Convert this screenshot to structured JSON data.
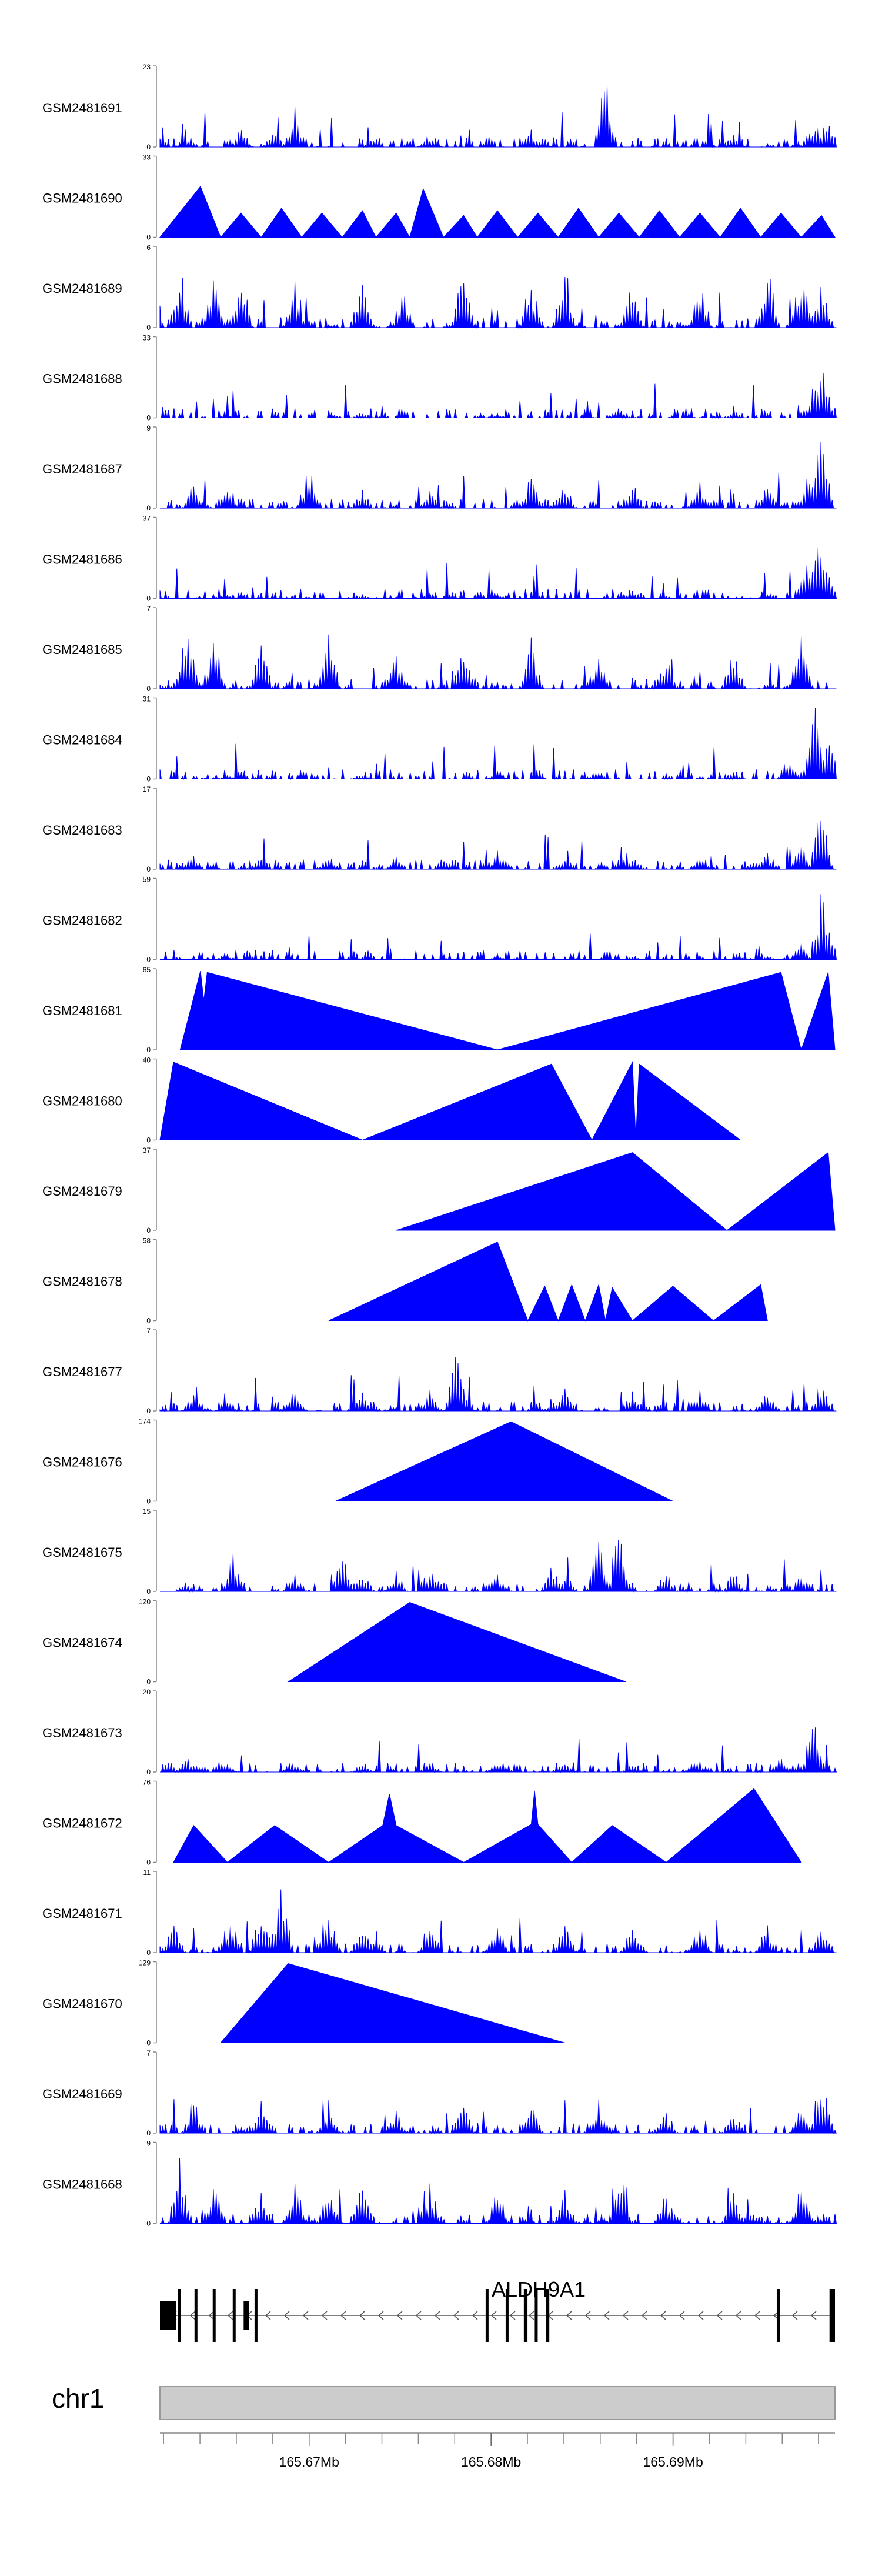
{
  "chart_data": {
    "type": "area",
    "title": "",
    "x_unit": "Mb",
    "xlim": [
      165.6618,
      165.6989
    ],
    "x_ticks": [
      {
        "value": 165.67,
        "label": "165.67Mb"
      },
      {
        "value": 165.68,
        "label": "165.68Mb"
      },
      {
        "value": 165.69,
        "label": "165.69Mb"
      }
    ],
    "track_color": "#0000ff",
    "tracks": [
      {
        "name": "GSM2481691",
        "ymax": "23",
        "ymin": "0",
        "style": "dense",
        "peaks": [
          [
            0.04,
            4
          ],
          [
            0.12,
            6
          ],
          [
            0.17,
            5
          ],
          [
            0.2,
            12
          ],
          [
            0.4,
            4
          ],
          [
            0.55,
            5
          ],
          [
            0.66,
            22
          ],
          [
            0.85,
            4
          ],
          [
            0.97,
            9
          ],
          [
            0.99,
            7
          ]
        ]
      },
      {
        "name": "GSM2481690",
        "ymax": "33",
        "ymin": "0",
        "style": "triangles",
        "peaks": [
          [
            0.0,
            0
          ],
          [
            0.06,
            21
          ],
          [
            0.09,
            0
          ],
          [
            0.12,
            10
          ],
          [
            0.15,
            0
          ],
          [
            0.18,
            12
          ],
          [
            0.21,
            0
          ],
          [
            0.24,
            10
          ],
          [
            0.27,
            0
          ],
          [
            0.3,
            11
          ],
          [
            0.32,
            0
          ],
          [
            0.35,
            10
          ],
          [
            0.37,
            0
          ],
          [
            0.39,
            20
          ],
          [
            0.42,
            0
          ],
          [
            0.45,
            9
          ],
          [
            0.47,
            0
          ],
          [
            0.5,
            11
          ],
          [
            0.53,
            0
          ],
          [
            0.56,
            10
          ],
          [
            0.59,
            0
          ],
          [
            0.62,
            12
          ],
          [
            0.65,
            0
          ],
          [
            0.68,
            10
          ],
          [
            0.71,
            0
          ],
          [
            0.74,
            11
          ],
          [
            0.77,
            0
          ],
          [
            0.8,
            10
          ],
          [
            0.83,
            0
          ],
          [
            0.86,
            12
          ],
          [
            0.89,
            0
          ],
          [
            0.92,
            10
          ],
          [
            0.95,
            0
          ],
          [
            0.98,
            9
          ],
          [
            1.0,
            0
          ]
        ]
      },
      {
        "name": "GSM2481689",
        "ymax": "6",
        "ymin": "0",
        "style": "dense",
        "peaks": [
          [
            0.03,
            5
          ],
          [
            0.08,
            4
          ],
          [
            0.12,
            5
          ],
          [
            0.2,
            4
          ],
          [
            0.3,
            4
          ],
          [
            0.36,
            3
          ],
          [
            0.45,
            6
          ],
          [
            0.55,
            4
          ],
          [
            0.6,
            5
          ],
          [
            0.7,
            4
          ],
          [
            0.8,
            4
          ],
          [
            0.9,
            5
          ],
          [
            0.95,
            5
          ],
          [
            0.98,
            4
          ]
        ]
      },
      {
        "name": "GSM2481688",
        "ymax": "33",
        "ymin": "0",
        "style": "dense",
        "peaks": [
          [
            0.1,
            2
          ],
          [
            0.3,
            2
          ],
          [
            0.5,
            2
          ],
          [
            0.68,
            5
          ],
          [
            0.85,
            2
          ],
          [
            0.96,
            6
          ],
          [
            0.98,
            31
          ],
          [
            0.99,
            10
          ]
        ]
      },
      {
        "name": "GSM2481687",
        "ymax": "9",
        "ymin": "0",
        "style": "dense",
        "peaks": [
          [
            0.05,
            3
          ],
          [
            0.1,
            3
          ],
          [
            0.22,
            5
          ],
          [
            0.3,
            2
          ],
          [
            0.4,
            2
          ],
          [
            0.55,
            4
          ],
          [
            0.6,
            3
          ],
          [
            0.7,
            3
          ],
          [
            0.8,
            3
          ],
          [
            0.9,
            3
          ],
          [
            0.96,
            4
          ],
          [
            0.98,
            9
          ]
        ]
      },
      {
        "name": "GSM2481686",
        "ymax": "37",
        "ymin": "0",
        "style": "dense",
        "peaks": [
          [
            0.1,
            2
          ],
          [
            0.3,
            2
          ],
          [
            0.5,
            2
          ],
          [
            0.7,
            4
          ],
          [
            0.9,
            3
          ],
          [
            0.96,
            25
          ],
          [
            0.98,
            36
          ],
          [
            0.99,
            15
          ]
        ]
      },
      {
        "name": "GSM2481685",
        "ymax": "7",
        "ymin": "0",
        "style": "dense",
        "peaks": [
          [
            0.04,
            6
          ],
          [
            0.08,
            5
          ],
          [
            0.15,
            4
          ],
          [
            0.25,
            5
          ],
          [
            0.35,
            3
          ],
          [
            0.45,
            4
          ],
          [
            0.55,
            5
          ],
          [
            0.65,
            4
          ],
          [
            0.75,
            3
          ],
          [
            0.85,
            4
          ],
          [
            0.95,
            5
          ]
        ]
      },
      {
        "name": "GSM2481684",
        "ymax": "31",
        "ymin": "0",
        "style": "dense",
        "peaks": [
          [
            0.1,
            2
          ],
          [
            0.3,
            2
          ],
          [
            0.5,
            2
          ],
          [
            0.65,
            4
          ],
          [
            0.85,
            3
          ],
          [
            0.93,
            8
          ],
          [
            0.97,
            30
          ],
          [
            0.99,
            18
          ]
        ]
      },
      {
        "name": "GSM2481683",
        "ymax": "17",
        "ymin": "0",
        "style": "dense",
        "peaks": [
          [
            0.05,
            3
          ],
          [
            0.15,
            3
          ],
          [
            0.25,
            3
          ],
          [
            0.35,
            3
          ],
          [
            0.5,
            4
          ],
          [
            0.6,
            3
          ],
          [
            0.7,
            3
          ],
          [
            0.8,
            3
          ],
          [
            0.9,
            4
          ],
          [
            0.95,
            7
          ],
          [
            0.98,
            15
          ]
        ]
      },
      {
        "name": "GSM2481682",
        "ymax": "59",
        "ymin": "0",
        "style": "dense",
        "peaks": [
          [
            0.1,
            2
          ],
          [
            0.3,
            2
          ],
          [
            0.5,
            2
          ],
          [
            0.7,
            2
          ],
          [
            0.9,
            3
          ],
          [
            0.95,
            12
          ],
          [
            0.98,
            55
          ],
          [
            0.99,
            25
          ]
        ]
      },
      {
        "name": "GSM2481681",
        "ymax": "65",
        "ymin": "0",
        "style": "triangles",
        "peaks": [
          [
            0.03,
            0
          ],
          [
            0.06,
            64
          ],
          [
            0.065,
            40
          ],
          [
            0.07,
            63
          ],
          [
            0.5,
            0
          ],
          [
            0.92,
            63
          ],
          [
            0.95,
            0
          ],
          [
            0.99,
            63
          ],
          [
            1.0,
            0
          ]
        ]
      },
      {
        "name": "GSM2481680",
        "ymax": "40",
        "ymin": "0",
        "style": "triangles",
        "peaks": [
          [
            0.0,
            0
          ],
          [
            0.02,
            39
          ],
          [
            0.3,
            0
          ],
          [
            0.58,
            38
          ],
          [
            0.64,
            0
          ],
          [
            0.7,
            39
          ],
          [
            0.705,
            0
          ],
          [
            0.71,
            38
          ],
          [
            0.86,
            0
          ]
        ]
      },
      {
        "name": "GSM2481679",
        "ymax": "37",
        "ymin": "0",
        "style": "triangles",
        "peaks": [
          [
            0.35,
            0
          ],
          [
            0.7,
            36
          ],
          [
            0.84,
            0
          ],
          [
            0.99,
            36
          ],
          [
            1.0,
            0
          ]
        ]
      },
      {
        "name": "GSM2481678",
        "ymax": "58",
        "ymin": "0",
        "style": "triangles",
        "peaks": [
          [
            0.25,
            0
          ],
          [
            0.5,
            57
          ],
          [
            0.545,
            0
          ],
          [
            0.57,
            25
          ],
          [
            0.59,
            0
          ],
          [
            0.61,
            26
          ],
          [
            0.63,
            0
          ],
          [
            0.65,
            26
          ],
          [
            0.66,
            0
          ],
          [
            0.67,
            24
          ],
          [
            0.7,
            0
          ],
          [
            0.76,
            25
          ],
          [
            0.82,
            0
          ],
          [
            0.89,
            26
          ],
          [
            0.9,
            0
          ]
        ]
      },
      {
        "name": "GSM2481677",
        "ymax": "7",
        "ymin": "0",
        "style": "dense",
        "peaks": [
          [
            0.05,
            2
          ],
          [
            0.1,
            1
          ],
          [
            0.2,
            2
          ],
          [
            0.3,
            2
          ],
          [
            0.4,
            2
          ],
          [
            0.44,
            6
          ],
          [
            0.45,
            2
          ],
          [
            0.6,
            2
          ],
          [
            0.7,
            2
          ],
          [
            0.8,
            2
          ],
          [
            0.9,
            2
          ],
          [
            0.98,
            3
          ]
        ]
      },
      {
        "name": "GSM2481676",
        "ymax": "174",
        "ymin": "0",
        "style": "triangles",
        "peaks": [
          [
            0.26,
            0
          ],
          [
            0.52,
            173
          ],
          [
            0.76,
            0
          ]
        ]
      },
      {
        "name": "GSM2481675",
        "ymax": "15",
        "ymin": "0",
        "style": "dense",
        "peaks": [
          [
            0.04,
            2
          ],
          [
            0.11,
            8
          ],
          [
            0.2,
            4
          ],
          [
            0.27,
            7
          ],
          [
            0.3,
            5
          ],
          [
            0.35,
            4
          ],
          [
            0.4,
            6
          ],
          [
            0.5,
            4
          ],
          [
            0.58,
            5
          ],
          [
            0.65,
            10
          ],
          [
            0.68,
            14
          ],
          [
            0.75,
            4
          ],
          [
            0.85,
            4
          ],
          [
            0.95,
            3
          ]
        ]
      },
      {
        "name": "GSM2481674",
        "ymax": "120",
        "ymin": "0",
        "style": "triangles",
        "peaks": [
          [
            0.19,
            0
          ],
          [
            0.37,
            119
          ],
          [
            0.69,
            0
          ]
        ]
      },
      {
        "name": "GSM2481673",
        "ymax": "20",
        "ymin": "0",
        "style": "dense",
        "peaks": [
          [
            0.04,
            4
          ],
          [
            0.1,
            2
          ],
          [
            0.2,
            3
          ],
          [
            0.3,
            2
          ],
          [
            0.4,
            3
          ],
          [
            0.5,
            2
          ],
          [
            0.6,
            3
          ],
          [
            0.7,
            2
          ],
          [
            0.8,
            3
          ],
          [
            0.92,
            5
          ],
          [
            0.97,
            19
          ]
        ]
      },
      {
        "name": "GSM2481672",
        "ymax": "76",
        "ymin": "0",
        "style": "triangles",
        "peaks": [
          [
            0.02,
            0
          ],
          [
            0.05,
            35
          ],
          [
            0.1,
            0
          ],
          [
            0.17,
            35
          ],
          [
            0.25,
            0
          ],
          [
            0.33,
            35
          ],
          [
            0.34,
            65
          ],
          [
            0.35,
            35
          ],
          [
            0.45,
            0
          ],
          [
            0.55,
            36
          ],
          [
            0.555,
            68
          ],
          [
            0.56,
            36
          ],
          [
            0.61,
            0
          ],
          [
            0.67,
            35
          ],
          [
            0.75,
            0
          ],
          [
            0.88,
            70
          ],
          [
            0.95,
            0
          ]
        ]
      },
      {
        "name": "GSM2481671",
        "ymax": "11",
        "ymin": "0",
        "style": "dense",
        "peaks": [
          [
            0.02,
            4
          ],
          [
            0.1,
            4
          ],
          [
            0.15,
            7
          ],
          [
            0.18,
            10
          ],
          [
            0.25,
            6
          ],
          [
            0.3,
            4
          ],
          [
            0.4,
            5
          ],
          [
            0.5,
            4
          ],
          [
            0.6,
            4
          ],
          [
            0.7,
            4
          ],
          [
            0.8,
            5
          ],
          [
            0.9,
            4
          ],
          [
            0.98,
            4
          ]
        ]
      },
      {
        "name": "GSM2481670",
        "ymax": "129",
        "ymin": "0",
        "style": "triangles",
        "peaks": [
          [
            0.09,
            0
          ],
          [
            0.19,
            128
          ],
          [
            0.6,
            0
          ]
        ]
      },
      {
        "name": "GSM2481669",
        "ymax": "7",
        "ymin": "0",
        "style": "dense",
        "peaks": [
          [
            0.05,
            3
          ],
          [
            0.15,
            3
          ],
          [
            0.25,
            3
          ],
          [
            0.35,
            2
          ],
          [
            0.45,
            3
          ],
          [
            0.55,
            3
          ],
          [
            0.65,
            3
          ],
          [
            0.75,
            2
          ],
          [
            0.85,
            2
          ],
          [
            0.95,
            3
          ],
          [
            0.98,
            7
          ]
        ]
      },
      {
        "name": "GSM2481668",
        "ymax": "9",
        "ymin": "0",
        "style": "dense",
        "peaks": [
          [
            0.03,
            8
          ],
          [
            0.08,
            5
          ],
          [
            0.15,
            4
          ],
          [
            0.2,
            6
          ],
          [
            0.25,
            4
          ],
          [
            0.3,
            5
          ],
          [
            0.4,
            5
          ],
          [
            0.5,
            4
          ],
          [
            0.6,
            4
          ],
          [
            0.68,
            8
          ],
          [
            0.75,
            4
          ],
          [
            0.85,
            4
          ],
          [
            0.95,
            5
          ]
        ]
      }
    ],
    "gene": {
      "name": "ALDH9A1",
      "strand": "-",
      "start": 165.6618,
      "end": 165.6989,
      "exons": [
        [
          165.6618,
          165.6627
        ],
        [
          165.6628,
          165.6629
        ],
        [
          165.6637,
          165.6638
        ],
        [
          165.6647,
          165.6648
        ],
        [
          165.6658,
          165.6659
        ],
        [
          165.6664,
          165.6667
        ],
        [
          165.667,
          165.6671
        ],
        [
          165.6797,
          165.6798
        ],
        [
          165.6808,
          165.6809
        ],
        [
          165.6818,
          165.682
        ],
        [
          165.6824,
          165.6825
        ],
        [
          165.683,
          165.6832
        ],
        [
          165.6957,
          165.6958
        ],
        [
          165.6986,
          165.6989
        ]
      ]
    },
    "chromosome": {
      "label": "chr1"
    }
  }
}
